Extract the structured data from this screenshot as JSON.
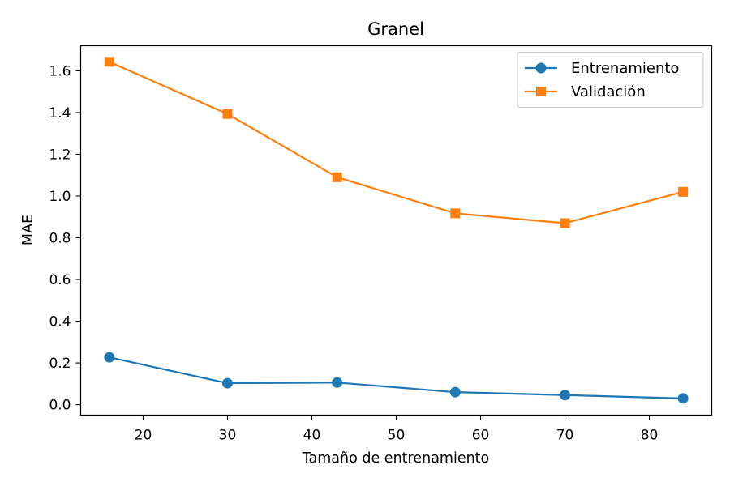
{
  "chart_data": {
    "type": "line",
    "title": "Granel",
    "xlabel": "Tamaño de entrenamiento",
    "ylabel": "MAE",
    "xlim": [
      12.6,
      87.4
    ],
    "ylim": [
      -0.05,
      1.72
    ],
    "xticks": [
      20,
      30,
      40,
      50,
      60,
      70,
      80
    ],
    "yticks": [
      0.0,
      0.2,
      0.4,
      0.6,
      0.8,
      1.0,
      1.2,
      1.4,
      1.6
    ],
    "ytick_labels": [
      "0.0",
      "0.2",
      "0.4",
      "0.6",
      "0.8",
      "1.0",
      "1.2",
      "1.4",
      "1.6"
    ],
    "grid": false,
    "legend_position": "top-right",
    "x": [
      16,
      30,
      43,
      57,
      70,
      84
    ],
    "series": [
      {
        "name": "Entrenamiento",
        "values": [
          0.227,
          0.103,
          0.106,
          0.06,
          0.046,
          0.03
        ],
        "color": "#1f77b4",
        "marker": "circle"
      },
      {
        "name": "Validación",
        "values": [
          1.643,
          1.393,
          1.09,
          0.917,
          0.87,
          1.02
        ],
        "color": "#ff7f0e",
        "marker": "square"
      }
    ]
  }
}
